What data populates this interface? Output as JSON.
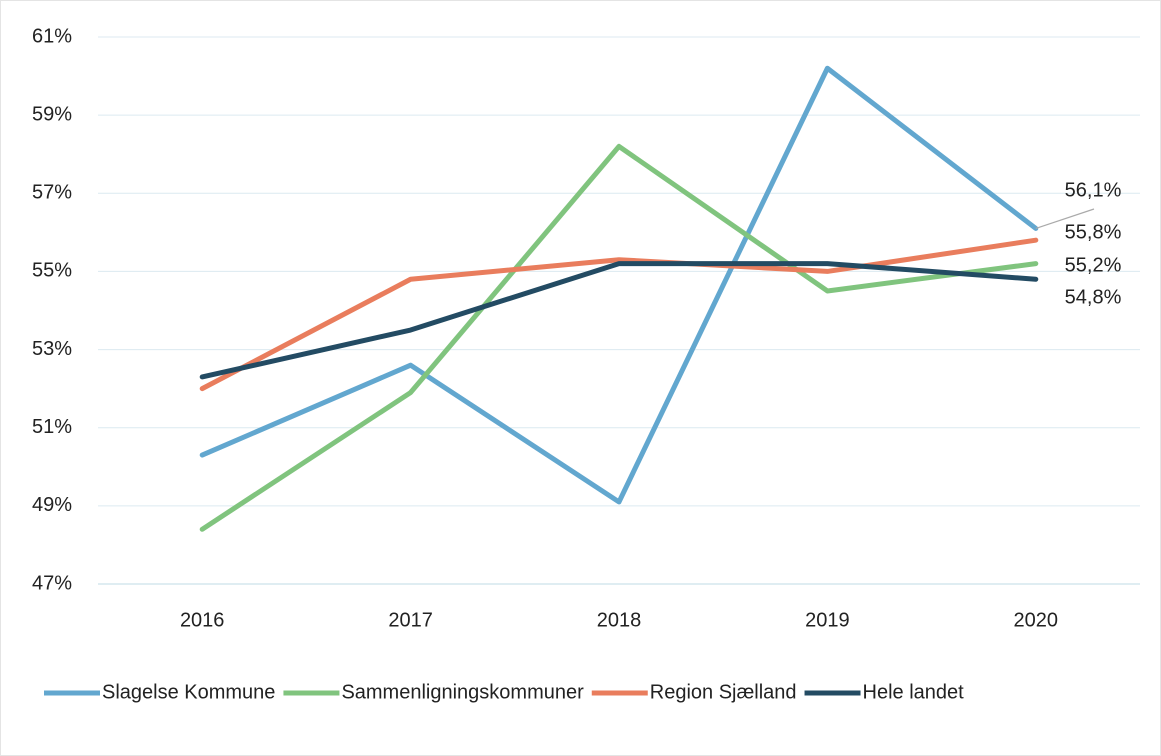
{
  "chart_data": {
    "type": "line",
    "categories": [
      "2016",
      "2017",
      "2018",
      "2019",
      "2020"
    ],
    "ylim": [
      47,
      61
    ],
    "yticks": [
      {
        "value": 47,
        "label": "47%"
      },
      {
        "value": 49,
        "label": "49%"
      },
      {
        "value": 51,
        "label": "51%"
      },
      {
        "value": 53,
        "label": "53%"
      },
      {
        "value": 55,
        "label": "55%"
      },
      {
        "value": 57,
        "label": "57%"
      },
      {
        "value": 59,
        "label": "59%"
      },
      {
        "value": 61,
        "label": "61%"
      }
    ],
    "grid": true,
    "legend": "bottom",
    "series": [
      {
        "name": "Slagelse Kommune",
        "color": "#62a7cf",
        "values": [
          50.3,
          52.6,
          49.1,
          60.2,
          56.1
        ],
        "value_labels": [
          null,
          null,
          null,
          null,
          "56,1%"
        ]
      },
      {
        "name": "Sammenligningskommuner",
        "color": "#80c47e",
        "values": [
          48.4,
          51.9,
          58.2,
          54.5,
          55.2
        ],
        "value_labels": [
          null,
          null,
          null,
          null,
          "55,2%"
        ]
      },
      {
        "name": "Region Sjælland",
        "color": "#e97d5d",
        "values": [
          52.0,
          54.8,
          55.3,
          55.0,
          55.8
        ],
        "value_labels": [
          null,
          null,
          null,
          null,
          "55,8%"
        ]
      },
      {
        "name": "Hele landet",
        "color": "#234b63",
        "values": [
          52.3,
          53.5,
          55.2,
          55.2,
          54.8
        ],
        "value_labels": [
          null,
          null,
          null,
          null,
          "54,8%"
        ]
      }
    ]
  }
}
